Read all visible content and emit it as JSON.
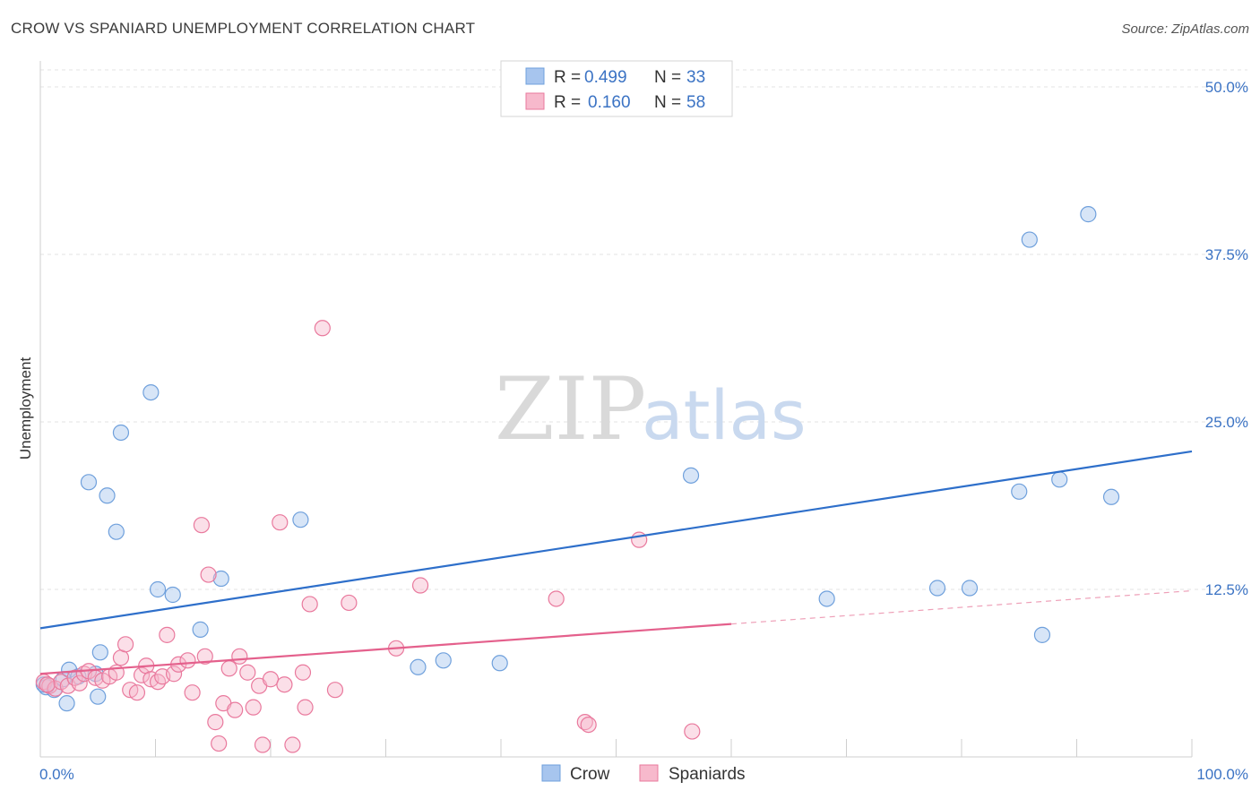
{
  "header": {
    "title": "CROW VS SPANIARD UNEMPLOYMENT CORRELATION CHART",
    "source": "Source: ZipAtlas.com"
  },
  "watermark": {
    "zip": "ZIP",
    "atlas": "atlas"
  },
  "legend": {
    "rows": [
      {
        "r_label": "R =",
        "r_value": "0.499",
        "n_label": "N =",
        "n_value": "33",
        "color": "#a7c5ee"
      },
      {
        "r_label": "R =",
        "r_value": "0.160",
        "n_label": "N =",
        "n_value": "58",
        "color": "#f7b9cc"
      }
    ]
  },
  "bottom_legend": [
    {
      "label": "Crow",
      "color": "#a7c5ee"
    },
    {
      "label": "Spaniards",
      "color": "#f7b9cc"
    }
  ],
  "chart_data": {
    "type": "scatter",
    "title": "CROW VS SPANIARD UNEMPLOYMENT CORRELATION CHART",
    "xlabel": "",
    "ylabel": "Unemployment",
    "xlim": [
      0,
      100
    ],
    "ylim": [
      0,
      50
    ],
    "x_tick_labels": [
      "0.0%",
      "100.0%"
    ],
    "y_ticks": [
      12.5,
      25.0,
      37.5,
      50.0
    ],
    "y_tick_labels": [
      "12.5%",
      "25.0%",
      "37.5%",
      "50.0%"
    ],
    "grid": true,
    "series": [
      {
        "name": "Crow",
        "color": "#6fa0dc",
        "fill": "#a7c5ee",
        "points": [
          [
            0.5,
            5.2
          ],
          [
            1.2,
            5.0
          ],
          [
            2.0,
            5.8
          ],
          [
            2.3,
            4.0
          ],
          [
            2.5,
            6.5
          ],
          [
            3.3,
            6.0
          ],
          [
            4.8,
            6.2
          ],
          [
            5.0,
            4.5
          ],
          [
            5.2,
            7.8
          ],
          [
            4.2,
            20.5
          ],
          [
            5.8,
            19.5
          ],
          [
            6.6,
            16.8
          ],
          [
            7.0,
            24.2
          ],
          [
            9.6,
            27.2
          ],
          [
            10.2,
            12.5
          ],
          [
            11.5,
            12.1
          ],
          [
            13.9,
            9.5
          ],
          [
            15.7,
            13.3
          ],
          [
            22.6,
            17.7
          ],
          [
            32.8,
            6.7
          ],
          [
            35.0,
            7.2
          ],
          [
            39.9,
            7.0
          ],
          [
            56.5,
            21.0
          ],
          [
            85.9,
            38.6
          ],
          [
            91.0,
            40.5
          ],
          [
            68.3,
            11.8
          ],
          [
            77.9,
            12.6
          ],
          [
            80.7,
            12.6
          ],
          [
            85.0,
            19.8
          ],
          [
            88.5,
            20.7
          ],
          [
            93.0,
            19.4
          ],
          [
            87.0,
            9.1
          ],
          [
            0.3,
            5.4
          ]
        ],
        "trend": {
          "x": [
            0,
            100
          ],
          "y": [
            9.6,
            22.8
          ],
          "dashed_from": null
        }
      },
      {
        "name": "Spaniards",
        "color": "#e9799d",
        "fill": "#f7b9cc",
        "points": [
          [
            0.3,
            5.6
          ],
          [
            0.8,
            5.3
          ],
          [
            1.3,
            5.1
          ],
          [
            1.8,
            5.6
          ],
          [
            2.4,
            5.3
          ],
          [
            3.0,
            5.9
          ],
          [
            3.4,
            5.5
          ],
          [
            3.8,
            6.2
          ],
          [
            4.2,
            6.4
          ],
          [
            4.8,
            5.9
          ],
          [
            5.4,
            5.7
          ],
          [
            6.0,
            6.0
          ],
          [
            6.6,
            6.3
          ],
          [
            7.0,
            7.4
          ],
          [
            7.4,
            8.4
          ],
          [
            7.8,
            5.0
          ],
          [
            8.4,
            4.8
          ],
          [
            8.8,
            6.1
          ],
          [
            9.2,
            6.8
          ],
          [
            9.6,
            5.8
          ],
          [
            10.2,
            5.6
          ],
          [
            10.6,
            6.0
          ],
          [
            11.0,
            9.1
          ],
          [
            11.6,
            6.2
          ],
          [
            12.0,
            6.9
          ],
          [
            12.8,
            7.2
          ],
          [
            13.2,
            4.8
          ],
          [
            14.0,
            17.3
          ],
          [
            14.3,
            7.5
          ],
          [
            14.6,
            13.6
          ],
          [
            15.2,
            2.6
          ],
          [
            15.5,
            1.0
          ],
          [
            15.9,
            4.0
          ],
          [
            16.4,
            6.6
          ],
          [
            16.9,
            3.5
          ],
          [
            17.3,
            7.5
          ],
          [
            18.0,
            6.3
          ],
          [
            18.5,
            3.7
          ],
          [
            19.0,
            5.3
          ],
          [
            19.3,
            0.9
          ],
          [
            20.0,
            5.8
          ],
          [
            20.8,
            17.5
          ],
          [
            21.2,
            5.4
          ],
          [
            21.9,
            0.9
          ],
          [
            22.8,
            6.3
          ],
          [
            23.0,
            3.7
          ],
          [
            23.4,
            11.4
          ],
          [
            24.5,
            32.0
          ],
          [
            25.6,
            5.0
          ],
          [
            26.8,
            11.5
          ],
          [
            30.9,
            8.1
          ],
          [
            33.0,
            12.8
          ],
          [
            44.8,
            11.8
          ],
          [
            47.3,
            2.6
          ],
          [
            47.6,
            2.4
          ],
          [
            52.0,
            16.2
          ],
          [
            56.6,
            1.9
          ],
          [
            0.6,
            5.4
          ]
        ],
        "trend": {
          "x": [
            0,
            100
          ],
          "y": [
            6.2,
            12.4
          ],
          "dashed_from": 60
        }
      }
    ]
  }
}
